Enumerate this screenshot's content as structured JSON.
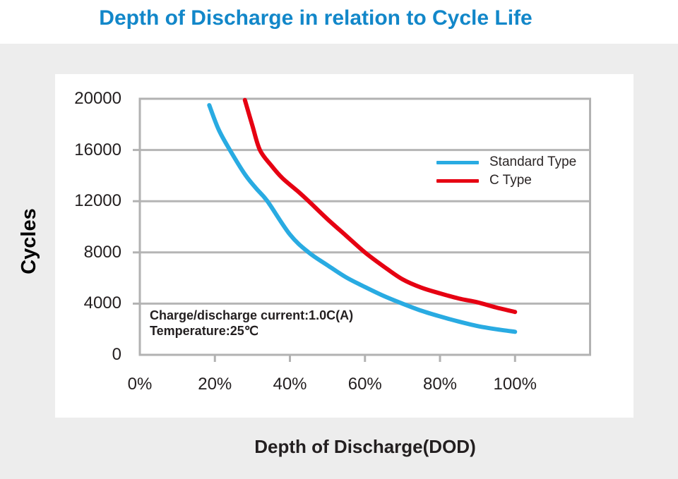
{
  "page": {
    "title": "Depth of Discharge in relation to Cycle Life",
    "title_color": "#1287c9"
  },
  "chart_data": {
    "type": "line",
    "title": "Depth of Discharge in relation to Cycle Life",
    "xlabel": "Depth of Discharge(DOD)",
    "ylabel": "Cycles",
    "x_unit": "percent DOD",
    "xlim": [
      0,
      120
    ],
    "ylim": [
      0,
      20000
    ],
    "x_ticks": [
      0,
      20,
      40,
      60,
      80,
      100
    ],
    "x_tick_labels": [
      "0%",
      "20%",
      "40%",
      "60%",
      "80%",
      "100%"
    ],
    "y_ticks": [
      0,
      4000,
      8000,
      12000,
      16000,
      20000
    ],
    "y_tick_labels": [
      "0",
      "4000",
      "8000",
      "12000",
      "16000",
      "20000"
    ],
    "grid": "horizontal gridlines at every 4000 cycles",
    "legend_position": "upper right inside plot",
    "annotation": {
      "line1": "Charge/discharge current:1.0C(A)",
      "line2": "Temperature:25℃"
    },
    "colors": {
      "grid": "#b5b5b5",
      "plot_border": "#b2b2b2",
      "standard_type": "#29abe2",
      "c_type": "#e60012"
    },
    "series": [
      {
        "name": "Standard Type",
        "color": "#29abe2",
        "points": [
          [
            18.5,
            19500
          ],
          [
            21,
            17600
          ],
          [
            24,
            16000
          ],
          [
            28,
            14100
          ],
          [
            31,
            13000
          ],
          [
            34,
            12000
          ],
          [
            40,
            9400
          ],
          [
            45,
            8000
          ],
          [
            50,
            7000
          ],
          [
            55,
            6050
          ],
          [
            60,
            5300
          ],
          [
            65,
            4600
          ],
          [
            70,
            4000
          ],
          [
            75,
            3450
          ],
          [
            80,
            3000
          ],
          [
            85,
            2600
          ],
          [
            90,
            2250
          ],
          [
            95,
            2000
          ],
          [
            100,
            1800
          ]
        ]
      },
      {
        "name": "C Type",
        "color": "#e60012",
        "points": [
          [
            28,
            19900
          ],
          [
            30,
            17900
          ],
          [
            32,
            16000
          ],
          [
            35,
            14800
          ],
          [
            38,
            13800
          ],
          [
            42,
            12800
          ],
          [
            45,
            12000
          ],
          [
            50,
            10600
          ],
          [
            55,
            9300
          ],
          [
            60,
            8000
          ],
          [
            65,
            6900
          ],
          [
            70,
            5900
          ],
          [
            75,
            5250
          ],
          [
            80,
            4800
          ],
          [
            85,
            4400
          ],
          [
            90,
            4100
          ],
          [
            95,
            3700
          ],
          [
            100,
            3350
          ]
        ]
      }
    ]
  }
}
